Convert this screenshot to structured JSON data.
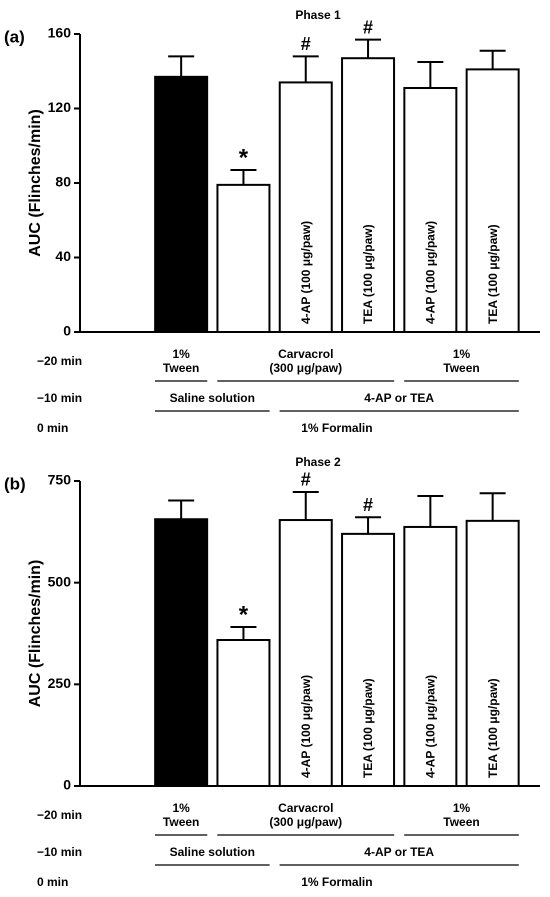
{
  "chart_data": [
    {
      "type": "bar",
      "panel": "(a)",
      "title": "Phase 1",
      "ylabel": "AUC (Flinches/min)",
      "categories": [
        null,
        null,
        "4-AP (100 μg/paw)",
        "TEA (100 μg/paw)",
        "4-AP (100 μg/paw)",
        "TEA (100 μg/paw)"
      ],
      "values": [
        137,
        79,
        134,
        147,
        131,
        141
      ],
      "errors": [
        11,
        8,
        14,
        10,
        14,
        10
      ],
      "annotations": [
        null,
        "*",
        "#",
        "#",
        null,
        null
      ],
      "colors": [
        "#000000",
        "#ffffff",
        "#ffffff",
        "#ffffff",
        "#ffffff",
        "#ffffff"
      ],
      "ylim": [
        0,
        160
      ],
      "yticks": [
        0,
        40,
        80,
        120,
        160
      ],
      "treatments": [
        {
          "label": "−20 min",
          "groups": [
            {
              "lines": [
                "1%",
                "Tween"
              ],
              "span": 1
            },
            {
              "lines": [
                "Carvacrol",
                "(300 μg/paw)"
              ],
              "span": 3
            },
            {
              "lines": [
                "1%",
                "Tween"
              ],
              "span": 2
            }
          ]
        },
        {
          "label": "−10 min",
          "groups": [
            {
              "lines": [
                "Saline solution"
              ],
              "span": 2
            },
            {
              "lines": [
                "4-AP or TEA"
              ],
              "span": 4
            }
          ]
        },
        {
          "label": "0 min",
          "groups": [
            {
              "lines": [
                "1% Formalin"
              ],
              "span": 6
            }
          ]
        }
      ]
    },
    {
      "type": "bar",
      "panel": "(b)",
      "title": "Phase 2",
      "ylabel": "AUC (Flinches/min)",
      "categories": [
        null,
        null,
        "4-AP (100 μg/paw)",
        "TEA (100 μg/paw)",
        "4-AP (100 μg/paw)",
        "TEA (100 μg/paw)"
      ],
      "values": [
        656,
        359,
        654,
        620,
        637,
        652
      ],
      "errors": [
        46,
        32,
        69,
        41,
        76,
        68
      ],
      "annotations": [
        null,
        "*",
        "#",
        "#",
        null,
        null
      ],
      "colors": [
        "#000000",
        "#ffffff",
        "#ffffff",
        "#ffffff",
        "#ffffff",
        "#ffffff"
      ],
      "ylim": [
        0,
        750
      ],
      "yticks": [
        0,
        250,
        500,
        750
      ],
      "treatments": [
        {
          "label": "−20 min",
          "groups": [
            {
              "lines": [
                "1%",
                "Tween"
              ],
              "span": 1
            },
            {
              "lines": [
                "Carvacrol",
                "(300 μg/paw)"
              ],
              "span": 3
            },
            {
              "lines": [
                "1%",
                "Tween"
              ],
              "span": 2
            }
          ]
        },
        {
          "label": "−10 min",
          "groups": [
            {
              "lines": [
                "Saline solution"
              ],
              "span": 2
            },
            {
              "lines": [
                "4-AP or TEA"
              ],
              "span": 4
            }
          ]
        },
        {
          "label": "0 min",
          "groups": [
            {
              "lines": [
                "1% Formalin"
              ],
              "span": 6
            }
          ]
        }
      ]
    }
  ]
}
